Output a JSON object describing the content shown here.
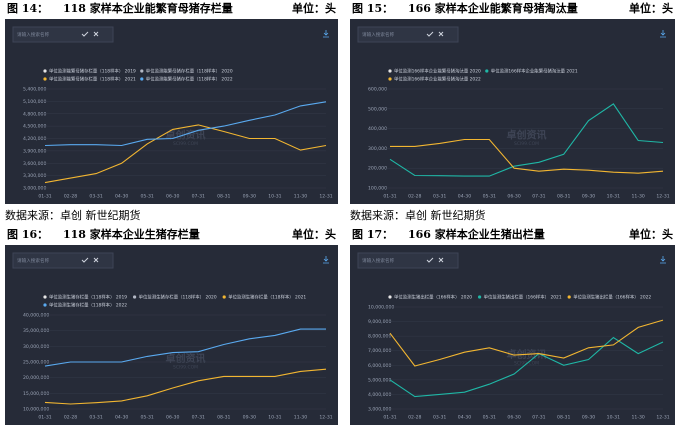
{
  "figures": [
    {
      "label": "图 14：",
      "title": "118 家样本企业能繁育母猪存栏量",
      "unit": "单位：头",
      "source": "数据来源：卓创   新世纪期货"
    },
    {
      "label": "图 15：",
      "title": "166 家样本企业能繁育母猪淘汰量",
      "unit": "单位：头",
      "source": "数据来源：卓创   新世纪期货"
    },
    {
      "label": "图 16：",
      "title": "118 家样本企业生猪存栏量",
      "unit": "单位：头"
    },
    {
      "label": "图 17：",
      "title": "166 家样本企业生猪出栏量",
      "unit": "单位：头"
    }
  ],
  "chart_data": [
    {
      "type": "line",
      "search_placeholder": "请输入搜索名称",
      "watermark": "卓创资讯",
      "watermark_sub": "SCI99.COM",
      "categories": [
        "01-31",
        "02-28",
        "03-31",
        "04-30",
        "05-31",
        "06-30",
        "07-31",
        "08-31",
        "09-30",
        "10-31",
        "11-30",
        "12-31"
      ],
      "series": [
        {
          "name": "单位监测能繁母猪存栏量（118样本） 2019",
          "color": "#e6e6e6",
          "values": [
            null,
            null,
            null,
            null,
            null,
            null,
            null,
            null,
            null,
            null,
            null,
            null
          ]
        },
        {
          "name": "单位监测能繁母猪存栏量（118样本） 2020",
          "color": "#b4b9c6",
          "values": [
            null,
            null,
            null,
            null,
            null,
            null,
            null,
            null,
            null,
            null,
            null,
            null
          ]
        },
        {
          "name": "单位监测能繁母猪存栏量（118样本） 2021",
          "color": "#f2b631",
          "values": [
            3130000,
            3240000,
            3350000,
            3600000,
            4070000,
            4420000,
            4530000,
            4370000,
            4200000,
            4200000,
            3920000,
            4030000
          ]
        },
        {
          "name": "单位监测能繁母猪存栏量（118样本） 2022",
          "color": "#5aaaf0",
          "values": [
            4030000,
            4050000,
            4050000,
            4030000,
            4180000,
            4200000,
            4400000,
            4500000,
            4640000,
            4770000,
            4990000,
            5090000
          ]
        }
      ],
      "ylim": [
        3000000,
        5400000
      ],
      "yticks": [
        {
          "value": 3000000,
          "label": "3,000,000"
        },
        {
          "value": 3300000,
          "label": "3,300,000"
        },
        {
          "value": 3600000,
          "label": "3,600,000"
        },
        {
          "value": 3900000,
          "label": "3,900,000"
        },
        {
          "value": 4200000,
          "label": "4,200,000"
        },
        {
          "value": 4500000,
          "label": "4,500,000"
        },
        {
          "value": 4800000,
          "label": "4,800,000"
        },
        {
          "value": 5100000,
          "label": "5,100,000"
        },
        {
          "value": 5400000,
          "label": "5,400,000"
        }
      ],
      "grid": true
    },
    {
      "type": "line",
      "search_placeholder": "请输入搜索名称",
      "watermark": "卓创资讯",
      "watermark_sub": "SCI99.COM",
      "categories": [
        "01-31",
        "02-28",
        "03-31",
        "04-30",
        "05-31",
        "06-30",
        "07-31",
        "08-31",
        "09-30",
        "10-31",
        "11-30",
        "12-31"
      ],
      "series": [
        {
          "name": "单位监测166样本企业能繁母猪淘汰量 2020",
          "color": "#e6e6e6",
          "values": [
            null,
            null,
            null,
            null,
            null,
            null,
            null,
            null,
            null,
            null,
            null,
            null
          ]
        },
        {
          "name": "单位监测166样本企业能繁母猪淘汰量 2021",
          "color": "#1fb7a6",
          "values": [
            245000,
            163000,
            162000,
            160000,
            160000,
            210000,
            230000,
            270000,
            440000,
            525000,
            340000,
            330000
          ]
        },
        {
          "name": "单位监测166样本企业能繁母猪淘汰量 2022",
          "color": "#f2b631",
          "values": [
            310000,
            310000,
            325000,
            345000,
            345000,
            200000,
            185000,
            195000,
            190000,
            180000,
            175000,
            185000
          ]
        }
      ],
      "ylim": [
        100000,
        600000
      ],
      "yticks": [
        {
          "value": 100000,
          "label": "100,000"
        },
        {
          "value": 200000,
          "label": "200,000"
        },
        {
          "value": 300000,
          "label": "300,000"
        },
        {
          "value": 400000,
          "label": "400,000"
        },
        {
          "value": 500000,
          "label": "500,000"
        },
        {
          "value": 600000,
          "label": "600,000"
        }
      ],
      "grid": true
    },
    {
      "type": "line",
      "search_placeholder": "请输入搜索名称",
      "watermark": "卓创资讯",
      "watermark_sub": "SCI99.COM",
      "categories": [
        "01-31",
        "02-28",
        "03-31",
        "04-30",
        "05-31",
        "06-30",
        "07-31",
        "08-31",
        "09-30",
        "10-31",
        "11-30",
        "12-31"
      ],
      "series": [
        {
          "name": "单位监测生猪存栏量（118样本） 2019",
          "color": "#e6e6e6",
          "values": [
            null,
            null,
            null,
            null,
            null,
            null,
            null,
            null,
            null,
            null,
            null,
            null
          ]
        },
        {
          "name": "单位监测生猪存栏量（118样本） 2020",
          "color": "#b4b9c6",
          "values": [
            null,
            null,
            null,
            null,
            null,
            null,
            null,
            null,
            null,
            null,
            null,
            null
          ]
        },
        {
          "name": "单位监测生猪存栏量（118样本） 2021",
          "color": "#f2b631",
          "values": [
            12100000,
            11600000,
            12000000,
            12600000,
            14200000,
            16700000,
            19000000,
            20400000,
            20400000,
            20400000,
            22000000,
            22700000
          ]
        },
        {
          "name": "单位监测生猪存栏量（118样本） 2022",
          "color": "#5aaaf0",
          "values": [
            23700000,
            25000000,
            25000000,
            25000000,
            26800000,
            28000000,
            28300000,
            30600000,
            32400000,
            33500000,
            35500000,
            35500000
          ]
        }
      ],
      "ylim": [
        10000000,
        40000000
      ],
      "yticks": [
        {
          "value": 10000000,
          "label": "10,000,000"
        },
        {
          "value": 15000000,
          "label": "15,000,000"
        },
        {
          "value": 20000000,
          "label": "20,000,000"
        },
        {
          "value": 25000000,
          "label": "25,000,000"
        },
        {
          "value": 30000000,
          "label": "30,000,000"
        },
        {
          "value": 35000000,
          "label": "35,000,000"
        },
        {
          "value": 40000000,
          "label": "40,000,000"
        }
      ],
      "grid": true
    },
    {
      "type": "line",
      "search_placeholder": "请输入搜索名称",
      "watermark": "卓创资讯",
      "watermark_sub": "SCI99.COM",
      "categories": [
        "01-31",
        "02-28",
        "03-31",
        "04-30",
        "05-31",
        "06-30",
        "07-31",
        "08-31",
        "09-30",
        "10-31",
        "11-30",
        "12-31"
      ],
      "series": [
        {
          "name": "单位监测生猪出栏量（166样本） 2020",
          "color": "#e6e6e6",
          "values": [
            null,
            null,
            null,
            null,
            null,
            null,
            null,
            null,
            null,
            null,
            null,
            null
          ]
        },
        {
          "name": "单位监测生猪出栏量（166样本） 2021",
          "color": "#1fb7a6",
          "values": [
            5000000,
            3850000,
            4000000,
            4150000,
            4700000,
            5400000,
            6800000,
            6000000,
            6400000,
            7900000,
            6800000,
            7600000
          ]
        },
        {
          "name": "单位监测生猪出栏量（166样本） 2022",
          "color": "#f2b631",
          "values": [
            8200000,
            5950000,
            6400000,
            6900000,
            7200000,
            6700000,
            6800000,
            6500000,
            7200000,
            7400000,
            8600000,
            9100000
          ]
        }
      ],
      "ylim": [
        3000000,
        10000000
      ],
      "yticks": [
        {
          "value": 3000000,
          "label": "3,000,000"
        },
        {
          "value": 4000000,
          "label": "4,000,000"
        },
        {
          "value": 5000000,
          "label": "5,000,000"
        },
        {
          "value": 6000000,
          "label": "6,000,000"
        },
        {
          "value": 7000000,
          "label": "7,000,000"
        },
        {
          "value": 8000000,
          "label": "8,000,000"
        },
        {
          "value": 9000000,
          "label": "9,000,000"
        },
        {
          "value": 10000000,
          "label": "10,000,000"
        }
      ],
      "grid": true
    }
  ]
}
